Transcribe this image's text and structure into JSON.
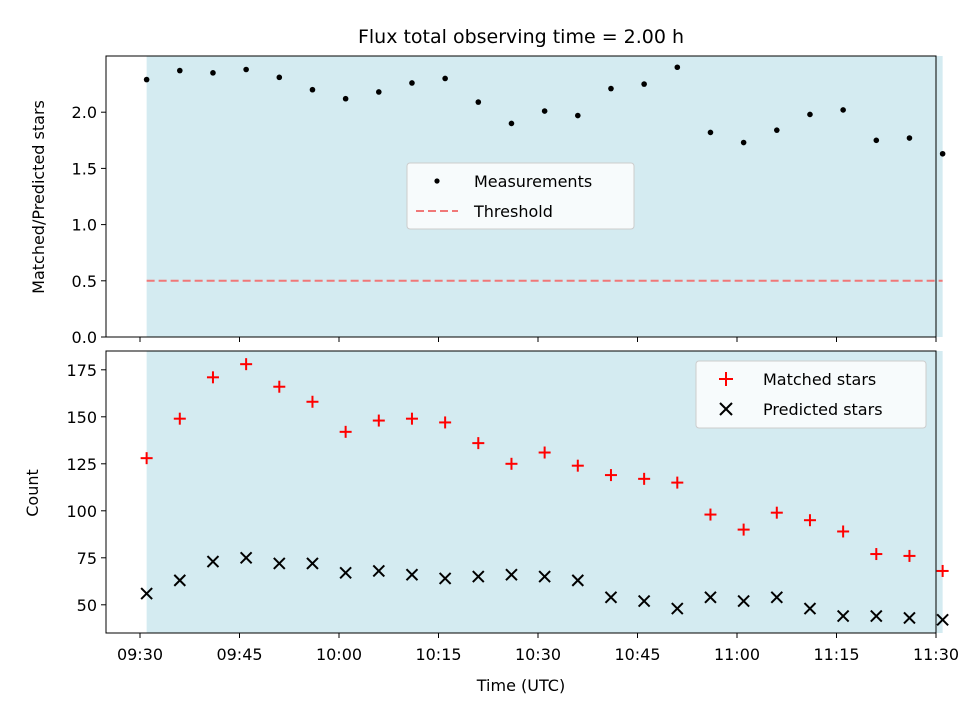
{
  "chart_data": [
    {
      "type": "scatter",
      "title": "Flux total observing time = 2.00 h",
      "xlabel": "",
      "ylabel": "Matched/Predicted stars",
      "ylim": [
        0,
        2.5
      ],
      "yticks": [
        "0.0",
        "0.5",
        "1.0",
        "1.5",
        "2.0"
      ],
      "shaded_span": [
        "09:31",
        "11:31"
      ],
      "shade_color": "#d4ebf1",
      "legend_placement": "center",
      "x": [
        "09:31",
        "09:36",
        "09:41",
        "09:46",
        "09:51",
        "09:56",
        "10:01",
        "10:06",
        "10:11",
        "10:16",
        "10:21",
        "10:26",
        "10:31",
        "10:36",
        "10:41",
        "10:46",
        "10:51",
        "10:56",
        "11:01",
        "11:06",
        "11:11",
        "11:16",
        "11:21",
        "11:26",
        "11:31"
      ],
      "series": [
        {
          "name": "Measurements",
          "marker": "dot",
          "color": "#000000",
          "values": [
            2.29,
            2.37,
            2.35,
            2.38,
            2.31,
            2.2,
            2.12,
            2.18,
            2.26,
            2.3,
            2.09,
            1.9,
            2.01,
            1.97,
            2.21,
            2.25,
            2.4,
            1.82,
            1.73,
            1.84,
            1.98,
            2.02,
            1.75,
            1.77,
            1.63
          ]
        },
        {
          "name": "Threshold",
          "marker": "dashed-line",
          "color": "#f07878",
          "values": [
            0.5,
            0.5
          ]
        }
      ]
    },
    {
      "type": "scatter",
      "title": "",
      "xlabel": "Time (UTC)",
      "ylabel": "Count",
      "ylim": [
        35,
        185
      ],
      "yticks": [
        "50",
        "75",
        "100",
        "125",
        "150",
        "175"
      ],
      "xticks": [
        "09:30",
        "09:45",
        "10:00",
        "10:15",
        "10:30",
        "10:45",
        "11:00",
        "11:15",
        "11:30"
      ],
      "shaded_span": [
        "09:31",
        "11:31"
      ],
      "shade_color": "#d4ebf1",
      "legend_placement": "top-right",
      "x": [
        "09:31",
        "09:36",
        "09:41",
        "09:46",
        "09:51",
        "09:56",
        "10:01",
        "10:06",
        "10:11",
        "10:16",
        "10:21",
        "10:26",
        "10:31",
        "10:36",
        "10:41",
        "10:46",
        "10:51",
        "10:56",
        "11:01",
        "11:06",
        "11:11",
        "11:16",
        "11:21",
        "11:26",
        "11:31"
      ],
      "series": [
        {
          "name": "Matched stars",
          "marker": "plus",
          "color": "#ff0000",
          "values": [
            128,
            149,
            171,
            178,
            166,
            158,
            142,
            148,
            149,
            147,
            136,
            125,
            131,
            124,
            119,
            117,
            115,
            98,
            90,
            99,
            95,
            89,
            77,
            76,
            68
          ]
        },
        {
          "name": "Predicted stars",
          "marker": "x",
          "color": "#000000",
          "values": [
            56,
            63,
            73,
            75,
            72,
            72,
            67,
            68,
            66,
            64,
            65,
            66,
            65,
            63,
            54,
            52,
            48,
            54,
            52,
            54,
            48,
            44,
            44,
            43,
            42
          ]
        }
      ]
    }
  ]
}
